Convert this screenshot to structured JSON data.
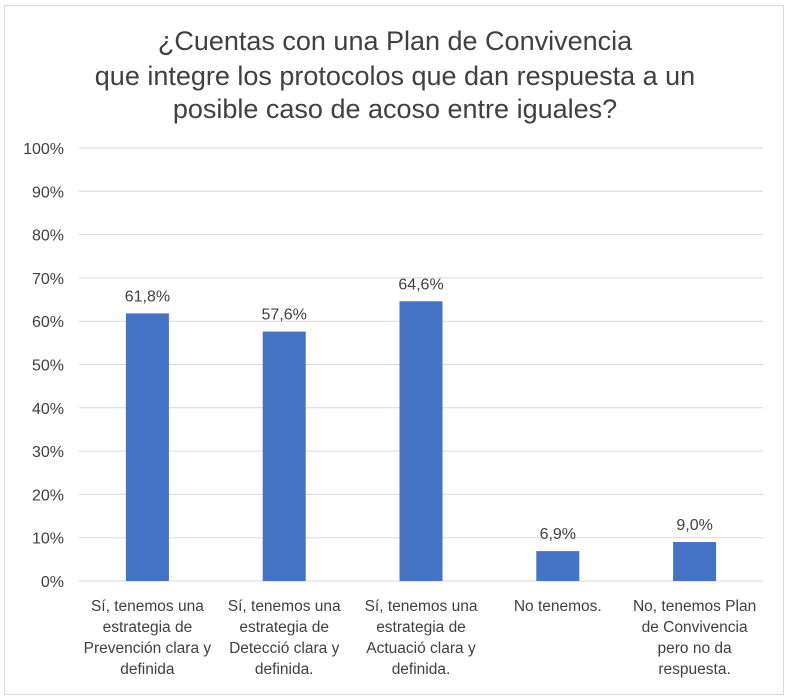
{
  "chart_data": {
    "type": "bar",
    "title_lines": [
      "¿Cuentas con una Plan de Convivencia",
      "que integre los protocolos que dan respuesta a un",
      "posible caso de acoso entre iguales?"
    ],
    "categories": [
      [
        "Sí, tenemos una",
        "estrategia de",
        "Prevención clara y",
        "definida"
      ],
      [
        "Sí, tenemos una",
        "estrategia de",
        "Detecció clara y",
        "definida."
      ],
      [
        "Sí, tenemos una",
        "estrategia de",
        "Actuació clara y",
        "definida."
      ],
      [
        "No tenemos."
      ],
      [
        "No, tenemos Plan",
        "de Convivencia",
        "pero no da",
        "respuesta."
      ]
    ],
    "values": [
      61.8,
      57.6,
      64.6,
      6.9,
      9.0
    ],
    "data_labels": [
      "61,8%",
      "57,6%",
      "64,6%",
      "6,9%",
      "9,0%"
    ],
    "y_ticks": [
      "0%",
      "10%",
      "20%",
      "30%",
      "40%",
      "50%",
      "60%",
      "70%",
      "80%",
      "90%",
      "100%"
    ],
    "ylim": [
      0,
      100
    ],
    "grid": true,
    "bar_color": "#4472c4",
    "grid_color": "#d9d9d9"
  }
}
